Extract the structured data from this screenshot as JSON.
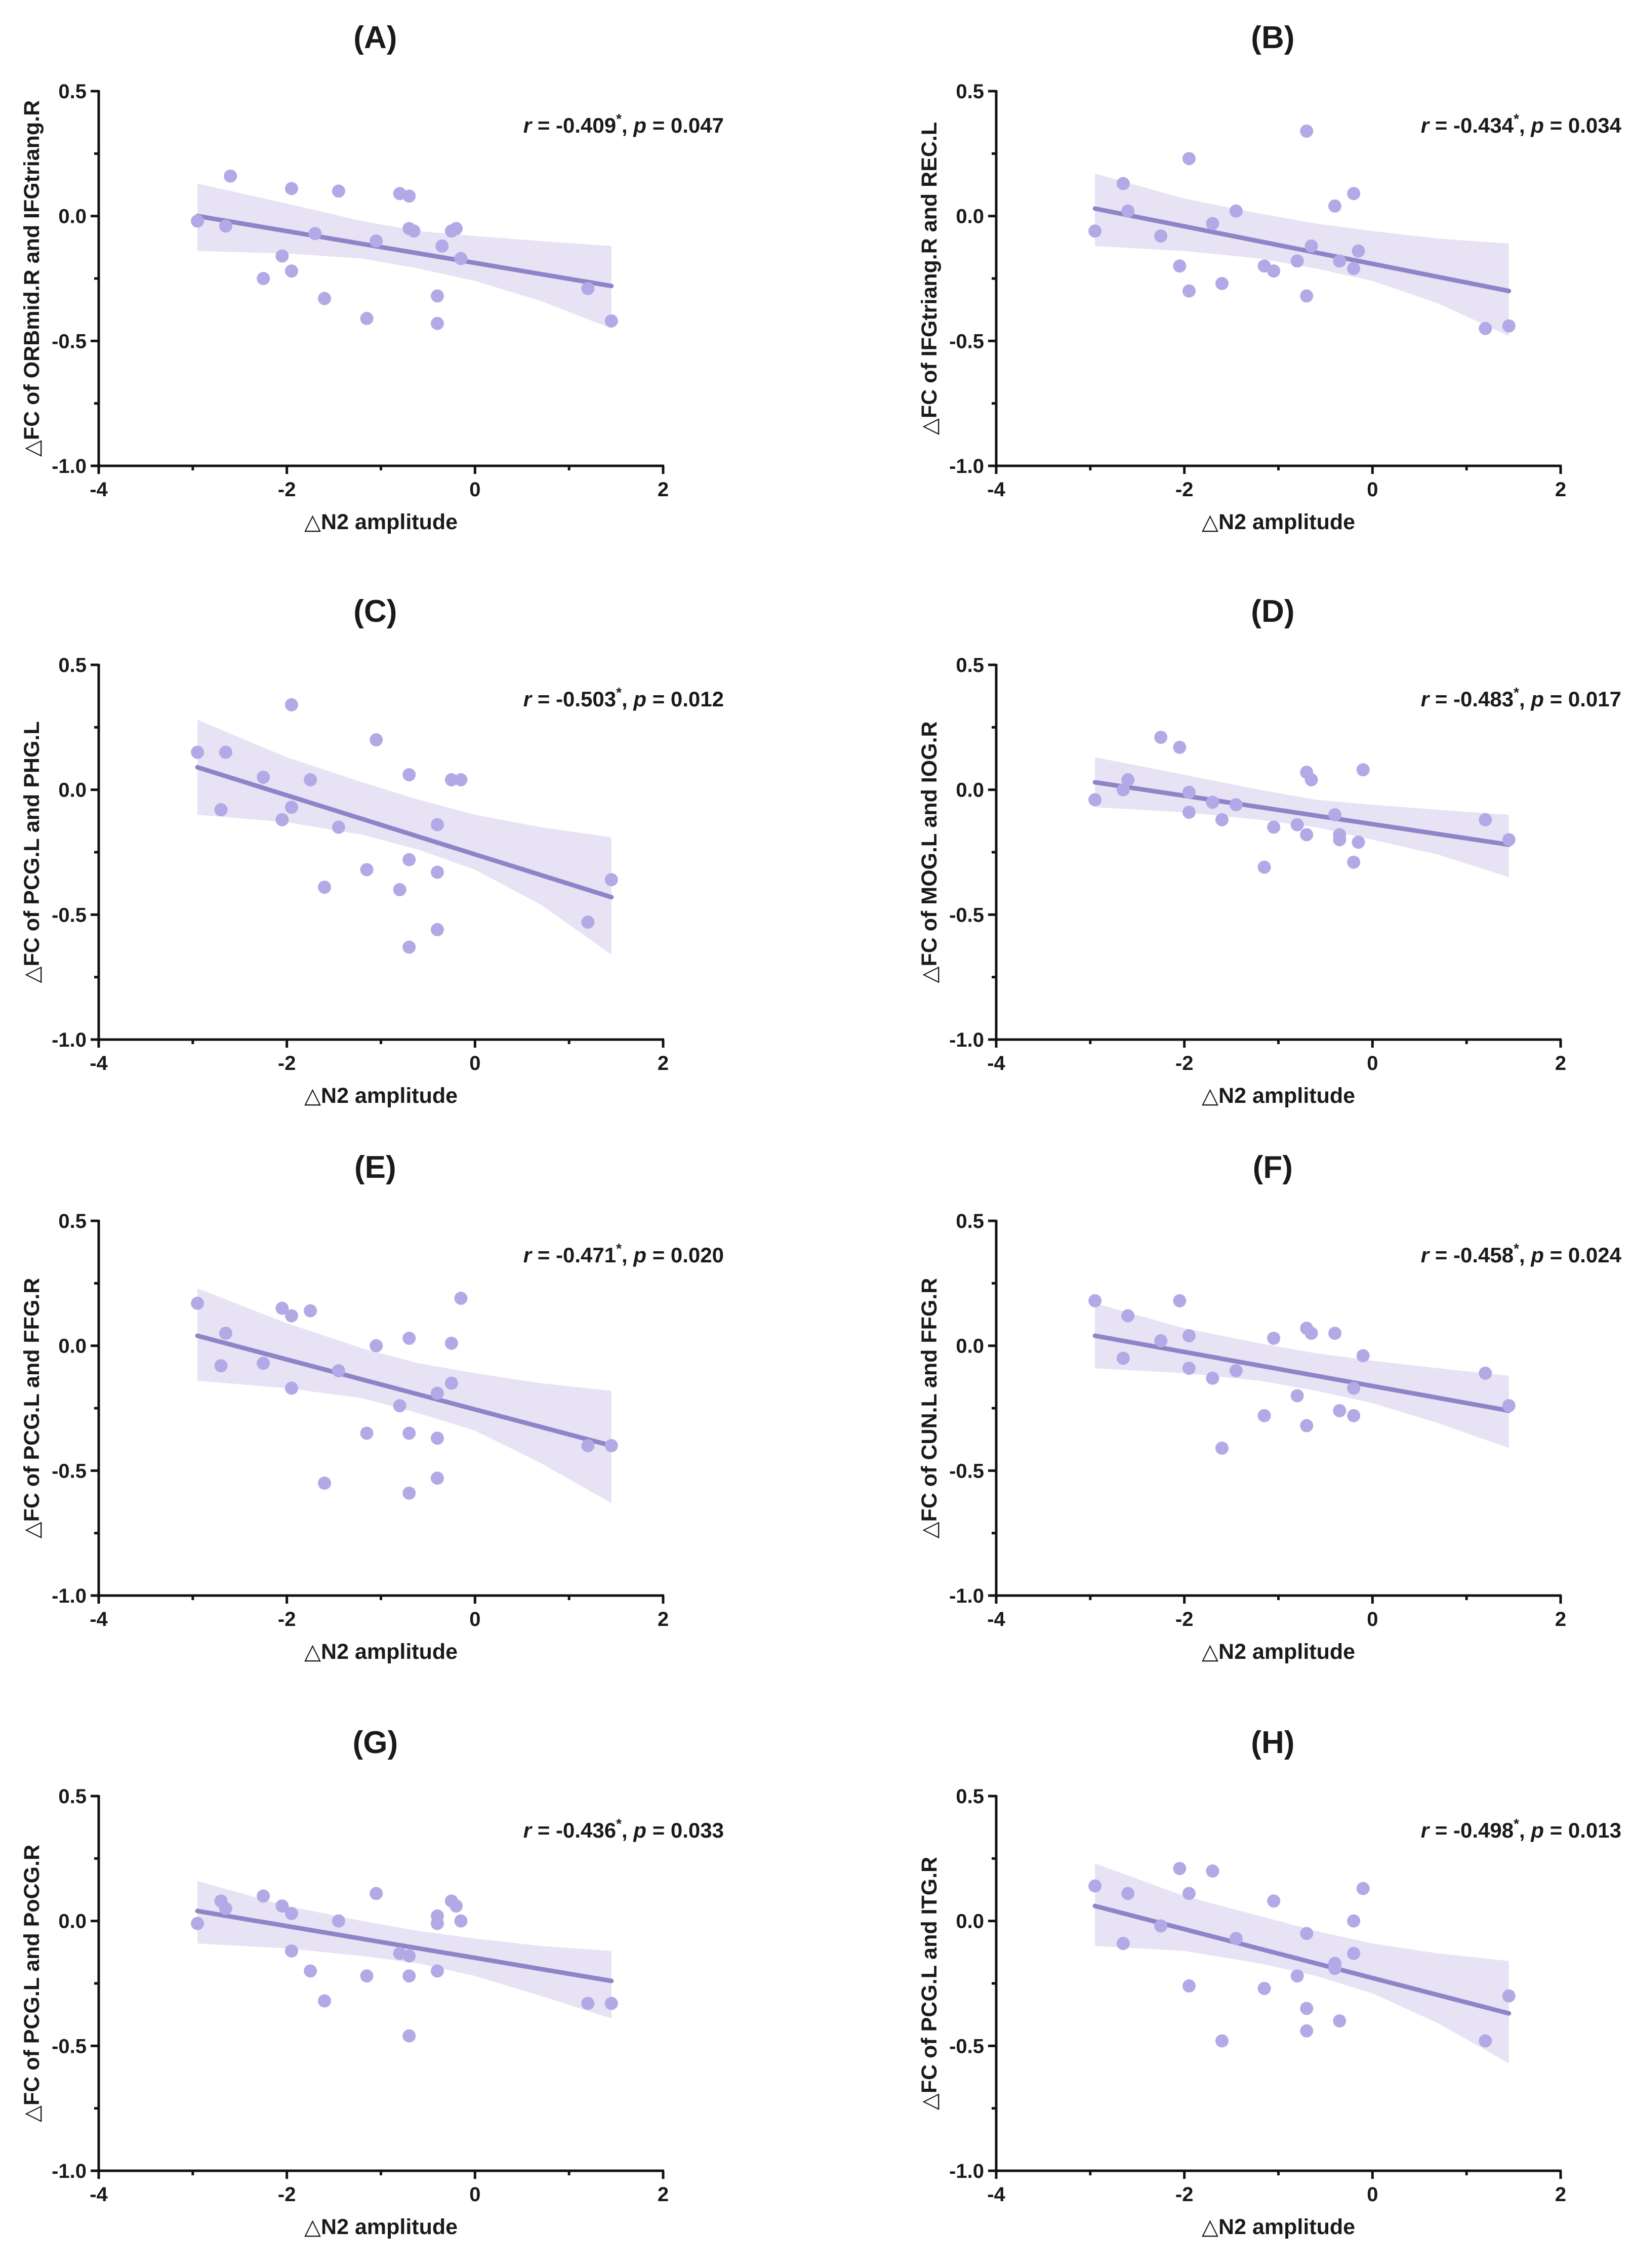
{
  "style": {
    "point_color": "#b3a9e6",
    "line_color": "#8f84c7",
    "band_color": "#e3def2",
    "axis_color": "#111111"
  },
  "chart_data": [
    {
      "type": "scatter",
      "panel": "(A)",
      "title": "(A)",
      "xlabel": "△N2 amplitude",
      "ylabel": "△FC of ORBmid.R and IFGtriang.R",
      "r_text": "r",
      "r_value": " = -0.409",
      "significance": "*",
      "p_text": "p",
      "p_value": " = 0.047",
      "xlim": [
        -4,
        2
      ],
      "ylim": [
        -1.0,
        0.5
      ],
      "xticks": [
        "-4",
        "-2",
        "0",
        "2"
      ],
      "yticks": [
        "-1.0",
        "-0.5",
        "0.0",
        "0.5"
      ],
      "fit": {
        "x": [
          -2.95,
          1.45
        ],
        "y": [
          0.0,
          -0.28
        ]
      },
      "ci": {
        "x": [
          -2.95,
          -2.0,
          -1.2,
          -0.6,
          0.0,
          0.7,
          1.45
        ],
        "upper": [
          0.13,
          0.05,
          -0.02,
          -0.06,
          -0.08,
          -0.1,
          -0.12
        ],
        "lower": [
          -0.14,
          -0.15,
          -0.17,
          -0.21,
          -0.26,
          -0.34,
          -0.45
        ]
      },
      "points": [
        [
          -2.95,
          -0.02
        ],
        [
          -2.65,
          -0.04
        ],
        [
          -2.6,
          0.16
        ],
        [
          -2.25,
          -0.25
        ],
        [
          -2.05,
          -0.16
        ],
        [
          -1.95,
          0.11
        ],
        [
          -1.95,
          -0.22
        ],
        [
          -1.7,
          -0.07
        ],
        [
          -1.6,
          -0.33
        ],
        [
          -1.45,
          0.1
        ],
        [
          -1.15,
          -0.41
        ],
        [
          -1.05,
          -0.1
        ],
        [
          -0.8,
          0.09
        ],
        [
          -0.7,
          0.08
        ],
        [
          -0.7,
          -0.05
        ],
        [
          -0.65,
          -0.06
        ],
        [
          -0.4,
          -0.32
        ],
        [
          -0.4,
          -0.43
        ],
        [
          -0.35,
          -0.12
        ],
        [
          -0.25,
          -0.06
        ],
        [
          -0.2,
          -0.05
        ],
        [
          -0.15,
          -0.17
        ],
        [
          1.2,
          -0.29
        ],
        [
          1.45,
          -0.42
        ]
      ]
    },
    {
      "type": "scatter",
      "panel": "(B)",
      "title": "(B)",
      "xlabel": "△N2 amplitude",
      "ylabel": "△FC of IFGtriang.R and REC.L",
      "r_text": "r",
      "r_value": " = -0.434",
      "significance": "*",
      "p_text": "p",
      "p_value": " = 0.034",
      "xlim": [
        -4,
        2
      ],
      "ylim": [
        -1.0,
        0.5
      ],
      "xticks": [
        "-4",
        "-2",
        "0",
        "2"
      ],
      "yticks": [
        "-1.0",
        "-0.5",
        "0.0",
        "0.5"
      ],
      "fit": {
        "x": [
          -2.95,
          1.45
        ],
        "y": [
          0.03,
          -0.3
        ]
      },
      "ci": {
        "x": [
          -2.95,
          -2.0,
          -1.2,
          -0.6,
          0.0,
          0.7,
          1.45
        ],
        "upper": [
          0.17,
          0.07,
          0.01,
          -0.03,
          -0.06,
          -0.09,
          -0.11
        ],
        "lower": [
          -0.12,
          -0.14,
          -0.17,
          -0.21,
          -0.26,
          -0.35,
          -0.48
        ]
      },
      "points": [
        [
          -2.95,
          -0.06
        ],
        [
          -2.65,
          0.13
        ],
        [
          -2.6,
          0.02
        ],
        [
          -2.25,
          -0.08
        ],
        [
          -2.05,
          -0.2
        ],
        [
          -1.95,
          0.23
        ],
        [
          -1.95,
          -0.3
        ],
        [
          -1.7,
          -0.03
        ],
        [
          -1.6,
          -0.27
        ],
        [
          -1.45,
          0.02
        ],
        [
          -1.15,
          -0.2
        ],
        [
          -1.05,
          -0.22
        ],
        [
          -0.8,
          -0.18
        ],
        [
          -0.7,
          0.34
        ],
        [
          -0.7,
          -0.32
        ],
        [
          -0.65,
          -0.12
        ],
        [
          -0.4,
          0.04
        ],
        [
          -0.35,
          -0.18
        ],
        [
          -0.2,
          0.09
        ],
        [
          -0.2,
          -0.21
        ],
        [
          -0.15,
          -0.14
        ],
        [
          1.2,
          -0.45
        ],
        [
          1.45,
          -0.44
        ]
      ]
    },
    {
      "type": "scatter",
      "panel": "(C)",
      "title": "(C)",
      "xlabel": "△N2 amplitude",
      "ylabel": "△FC of PCG.L and PHG.L",
      "r_text": "r",
      "r_value": " = -0.503",
      "significance": "*",
      "p_text": "p",
      "p_value": " = 0.012",
      "xlim": [
        -4,
        2
      ],
      "ylim": [
        -1.0,
        0.5
      ],
      "xticks": [
        "-4",
        "-2",
        "0",
        "2"
      ],
      "yticks": [
        "-1.0",
        "-0.5",
        "0.0",
        "0.5"
      ],
      "fit": {
        "x": [
          -2.95,
          1.45
        ],
        "y": [
          0.09,
          -0.43
        ]
      },
      "ci": {
        "x": [
          -2.95,
          -2.0,
          -1.2,
          -0.6,
          0.0,
          0.7,
          1.45
        ],
        "upper": [
          0.28,
          0.13,
          0.03,
          -0.04,
          -0.1,
          -0.15,
          -0.19
        ],
        "lower": [
          -0.1,
          -0.13,
          -0.18,
          -0.24,
          -0.32,
          -0.46,
          -0.66
        ]
      },
      "points": [
        [
          -2.95,
          0.15
        ],
        [
          -2.7,
          -0.08
        ],
        [
          -2.65,
          0.15
        ],
        [
          -2.25,
          0.05
        ],
        [
          -2.05,
          -0.12
        ],
        [
          -1.95,
          0.34
        ],
        [
          -1.95,
          -0.07
        ],
        [
          -1.75,
          0.04
        ],
        [
          -1.6,
          -0.39
        ],
        [
          -1.45,
          -0.15
        ],
        [
          -1.15,
          -0.32
        ],
        [
          -1.05,
          0.2
        ],
        [
          -0.8,
          -0.4
        ],
        [
          -0.7,
          -0.28
        ],
        [
          -0.7,
          0.06
        ],
        [
          -0.7,
          -0.63
        ],
        [
          -0.4,
          -0.14
        ],
        [
          -0.4,
          -0.33
        ],
        [
          -0.4,
          -0.56
        ],
        [
          -0.25,
          0.04
        ],
        [
          -0.15,
          0.04
        ],
        [
          1.2,
          -0.53
        ],
        [
          1.45,
          -0.36
        ]
      ]
    },
    {
      "type": "scatter",
      "panel": "(D)",
      "title": "(D)",
      "xlabel": "△N2 amplitude",
      "ylabel": "△FC of MOG.L and IOG.R",
      "r_text": "r",
      "r_value": " = -0.483",
      "significance": "*",
      "p_text": "p",
      "p_value": " = 0.017",
      "xlim": [
        -4,
        2
      ],
      "ylim": [
        -1.0,
        0.5
      ],
      "xticks": [
        "-4",
        "-2",
        "0",
        "2"
      ],
      "yticks": [
        "-1.0",
        "-0.5",
        "0.0",
        "0.5"
      ],
      "fit": {
        "x": [
          -2.95,
          1.45
        ],
        "y": [
          0.03,
          -0.22
        ]
      },
      "ci": {
        "x": [
          -2.95,
          -2.0,
          -1.2,
          -0.6,
          0.0,
          0.7,
          1.45
        ],
        "upper": [
          0.13,
          0.06,
          0.0,
          -0.04,
          -0.06,
          -0.08,
          -0.1
        ],
        "lower": [
          -0.07,
          -0.09,
          -0.12,
          -0.15,
          -0.2,
          -0.26,
          -0.35
        ]
      },
      "points": [
        [
          -2.95,
          -0.04
        ],
        [
          -2.65,
          0.0
        ],
        [
          -2.6,
          0.04
        ],
        [
          -2.25,
          0.21
        ],
        [
          -2.05,
          0.17
        ],
        [
          -1.95,
          -0.01
        ],
        [
          -1.95,
          -0.09
        ],
        [
          -1.7,
          -0.05
        ],
        [
          -1.6,
          -0.12
        ],
        [
          -1.45,
          -0.06
        ],
        [
          -1.15,
          -0.31
        ],
        [
          -1.05,
          -0.15
        ],
        [
          -0.8,
          -0.14
        ],
        [
          -0.7,
          -0.18
        ],
        [
          -0.7,
          0.07
        ],
        [
          -0.65,
          0.04
        ],
        [
          -0.4,
          -0.1
        ],
        [
          -0.35,
          -0.18
        ],
        [
          -0.35,
          -0.2
        ],
        [
          -0.2,
          -0.29
        ],
        [
          -0.15,
          -0.21
        ],
        [
          -0.1,
          0.08
        ],
        [
          1.2,
          -0.12
        ],
        [
          1.45,
          -0.2
        ]
      ]
    },
    {
      "type": "scatter",
      "panel": "(E)",
      "title": "(E)",
      "xlabel": "△N2 amplitude",
      "ylabel": "△FC of PCG.L and FFG.R",
      "r_text": "r",
      "r_value": " = -0.471",
      "significance": "*",
      "p_text": "p",
      "p_value": " = 0.020",
      "xlim": [
        -4,
        2
      ],
      "ylim": [
        -1.0,
        0.5
      ],
      "xticks": [
        "-4",
        "-2",
        "0",
        "2"
      ],
      "yticks": [
        "-1.0",
        "-0.5",
        "0.0",
        "0.5"
      ],
      "fit": {
        "x": [
          -2.95,
          1.45
        ],
        "y": [
          0.04,
          -0.4
        ]
      },
      "ci": {
        "x": [
          -2.95,
          -2.0,
          -1.2,
          -0.6,
          0.0,
          0.7,
          1.45
        ],
        "upper": [
          0.23,
          0.09,
          -0.01,
          -0.07,
          -0.11,
          -0.15,
          -0.18
        ],
        "lower": [
          -0.14,
          -0.17,
          -0.21,
          -0.27,
          -0.34,
          -0.47,
          -0.63
        ]
      },
      "points": [
        [
          -2.95,
          0.17
        ],
        [
          -2.7,
          -0.08
        ],
        [
          -2.65,
          0.05
        ],
        [
          -2.25,
          -0.07
        ],
        [
          -2.05,
          0.15
        ],
        [
          -1.95,
          0.12
        ],
        [
          -1.95,
          -0.17
        ],
        [
          -1.75,
          0.14
        ],
        [
          -1.6,
          -0.55
        ],
        [
          -1.45,
          -0.1
        ],
        [
          -1.15,
          -0.35
        ],
        [
          -1.05,
          0.0
        ],
        [
          -0.8,
          -0.24
        ],
        [
          -0.7,
          0.03
        ],
        [
          -0.7,
          -0.35
        ],
        [
          -0.7,
          -0.59
        ],
        [
          -0.4,
          -0.19
        ],
        [
          -0.4,
          -0.37
        ],
        [
          -0.4,
          -0.53
        ],
        [
          -0.25,
          0.01
        ],
        [
          -0.15,
          0.19
        ],
        [
          -0.25,
          -0.15
        ],
        [
          1.2,
          -0.4
        ],
        [
          1.45,
          -0.4
        ]
      ]
    },
    {
      "type": "scatter",
      "panel": "(F)",
      "title": "(F)",
      "xlabel": "△N2 amplitude",
      "ylabel": "△FC of CUN.L and FFG.R",
      "r_text": "r",
      "r_value": " = -0.458",
      "significance": "*",
      "p_text": "p",
      "p_value": " = 0.024",
      "xlim": [
        -4,
        2
      ],
      "ylim": [
        -1.0,
        0.5
      ],
      "xticks": [
        "-4",
        "-2",
        "0",
        "2"
      ],
      "yticks": [
        "-1.0",
        "-0.5",
        "0.0",
        "0.5"
      ],
      "fit": {
        "x": [
          -2.95,
          1.45
        ],
        "y": [
          0.04,
          -0.26
        ]
      },
      "ci": {
        "x": [
          -2.95,
          -2.0,
          -1.2,
          -0.6,
          0.0,
          0.7,
          1.45
        ],
        "upper": [
          0.17,
          0.07,
          0.01,
          -0.03,
          -0.06,
          -0.09,
          -0.12
        ],
        "lower": [
          -0.09,
          -0.11,
          -0.14,
          -0.18,
          -0.23,
          -0.31,
          -0.41
        ]
      },
      "points": [
        [
          -2.95,
          0.18
        ],
        [
          -2.65,
          -0.05
        ],
        [
          -2.6,
          0.12
        ],
        [
          -2.25,
          0.02
        ],
        [
          -2.05,
          0.18
        ],
        [
          -1.95,
          0.04
        ],
        [
          -1.95,
          -0.09
        ],
        [
          -1.7,
          -0.13
        ],
        [
          -1.6,
          -0.41
        ],
        [
          -1.45,
          -0.1
        ],
        [
          -1.15,
          -0.28
        ],
        [
          -1.05,
          0.03
        ],
        [
          -0.8,
          -0.2
        ],
        [
          -0.7,
          0.07
        ],
        [
          -0.7,
          -0.32
        ],
        [
          -0.65,
          0.05
        ],
        [
          -0.4,
          0.05
        ],
        [
          -0.35,
          -0.26
        ],
        [
          -0.2,
          -0.28
        ],
        [
          -0.2,
          -0.17
        ],
        [
          -0.1,
          -0.04
        ],
        [
          1.2,
          -0.11
        ],
        [
          1.45,
          -0.24
        ]
      ]
    },
    {
      "type": "scatter",
      "panel": "(G)",
      "title": "(G)",
      "xlabel": "△N2 amplitude",
      "ylabel": "△FC of PCG.L and PoCG.R",
      "r_text": "r",
      "r_value": " = -0.436",
      "significance": "*",
      "p_text": "p",
      "p_value": " = 0.033",
      "xlim": [
        -4,
        2
      ],
      "ylim": [
        -1.0,
        0.5
      ],
      "xticks": [
        "-4",
        "-2",
        "0",
        "2"
      ],
      "yticks": [
        "-1.0",
        "-0.5",
        "0.0",
        "0.5"
      ],
      "fit": {
        "x": [
          -2.95,
          1.45
        ],
        "y": [
          0.04,
          -0.24
        ]
      },
      "ci": {
        "x": [
          -2.95,
          -2.0,
          -1.2,
          -0.6,
          0.0,
          0.7,
          1.45
        ],
        "upper": [
          0.16,
          0.06,
          0.0,
          -0.04,
          -0.07,
          -0.1,
          -0.12
        ],
        "lower": [
          -0.09,
          -0.11,
          -0.14,
          -0.17,
          -0.22,
          -0.3,
          -0.39
        ]
      },
      "points": [
        [
          -2.95,
          -0.01
        ],
        [
          -2.7,
          0.08
        ],
        [
          -2.65,
          0.05
        ],
        [
          -2.25,
          0.1
        ],
        [
          -2.05,
          0.06
        ],
        [
          -1.95,
          0.03
        ],
        [
          -1.95,
          -0.12
        ],
        [
          -1.75,
          -0.2
        ],
        [
          -1.6,
          -0.32
        ],
        [
          -1.45,
          0.0
        ],
        [
          -1.15,
          -0.22
        ],
        [
          -1.05,
          0.11
        ],
        [
          -0.8,
          -0.13
        ],
        [
          -0.7,
          -0.14
        ],
        [
          -0.7,
          -0.22
        ],
        [
          -0.7,
          -0.46
        ],
        [
          -0.4,
          0.02
        ],
        [
          -0.4,
          -0.01
        ],
        [
          -0.4,
          -0.2
        ],
        [
          -0.25,
          0.08
        ],
        [
          -0.2,
          0.06
        ],
        [
          -0.15,
          0.0
        ],
        [
          1.2,
          -0.33
        ],
        [
          1.45,
          -0.33
        ]
      ]
    },
    {
      "type": "scatter",
      "panel": "(H)",
      "title": "(H)",
      "xlabel": "△N2 amplitude",
      "ylabel": "△FC of PCG.L and ITG.R",
      "r_text": "r",
      "r_value": " = -0.498",
      "significance": "*",
      "p_text": "p",
      "p_value": " = 0.013",
      "xlim": [
        -4,
        2
      ],
      "ylim": [
        -1.0,
        0.5
      ],
      "xticks": [
        "-4",
        "-2",
        "0",
        "2"
      ],
      "yticks": [
        "-1.0",
        "-0.5",
        "0.0",
        "0.5"
      ],
      "fit": {
        "x": [
          -2.95,
          1.45
        ],
        "y": [
          0.06,
          -0.37
        ]
      },
      "ci": {
        "x": [
          -2.95,
          -2.0,
          -1.2,
          -0.6,
          0.0,
          0.7,
          1.45
        ],
        "upper": [
          0.23,
          0.1,
          0.02,
          -0.04,
          -0.09,
          -0.13,
          -0.16
        ],
        "lower": [
          -0.1,
          -0.12,
          -0.17,
          -0.22,
          -0.29,
          -0.41,
          -0.57
        ]
      },
      "points": [
        [
          -2.95,
          0.14
        ],
        [
          -2.65,
          -0.09
        ],
        [
          -2.6,
          0.11
        ],
        [
          -2.25,
          -0.02
        ],
        [
          -2.05,
          0.21
        ],
        [
          -1.95,
          0.11
        ],
        [
          -1.95,
          -0.26
        ],
        [
          -1.7,
          0.2
        ],
        [
          -1.6,
          -0.48
        ],
        [
          -1.45,
          -0.07
        ],
        [
          -1.15,
          -0.27
        ],
        [
          -1.05,
          0.08
        ],
        [
          -0.8,
          -0.22
        ],
        [
          -0.7,
          -0.05
        ],
        [
          -0.7,
          -0.35
        ],
        [
          -0.7,
          -0.44
        ],
        [
          -0.4,
          -0.17
        ],
        [
          -0.4,
          -0.19
        ],
        [
          -0.35,
          -0.4
        ],
        [
          -0.2,
          -0.13
        ],
        [
          -0.2,
          -0.0
        ],
        [
          -0.1,
          0.13
        ],
        [
          1.2,
          -0.48
        ],
        [
          1.45,
          -0.3
        ]
      ]
    }
  ]
}
